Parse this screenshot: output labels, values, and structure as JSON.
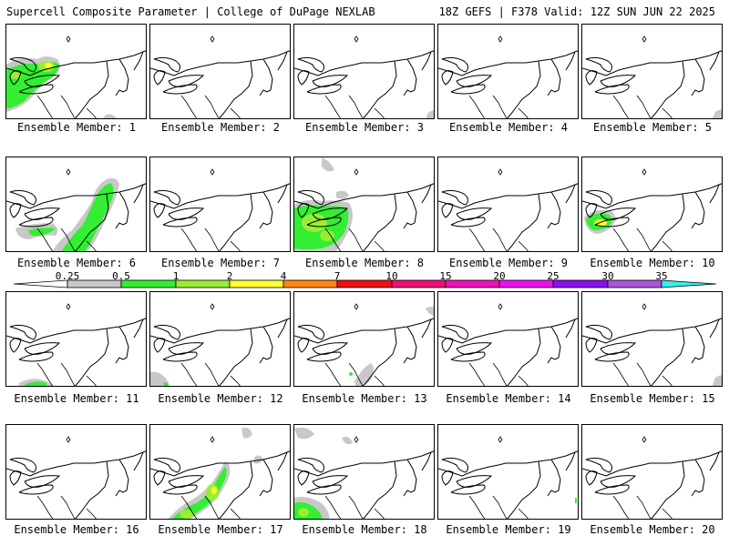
{
  "header": {
    "title_left": "Supercell Composite Parameter | College of DuPage NEXLAB",
    "title_right": "18Z GEFS | F378 Valid: 12Z SUN JUN 22 2025"
  },
  "colorbar": {
    "tick_labels": [
      "0.25",
      "0.5",
      "1",
      "2",
      "4",
      "7",
      "10",
      "15",
      "20",
      "25",
      "30",
      "35"
    ],
    "colors": [
      "#c8c8c8",
      "#33ee33",
      "#99ee33",
      "#ffff33",
      "#ff8811",
      "#ee1111",
      "#ee1177",
      "#ee11bb",
      "#ee11ee",
      "#8811ee",
      "#aa55dd",
      "#33eeee"
    ]
  },
  "members": [
    {
      "label": "Ensemble Member: 1",
      "coverage": "high"
    },
    {
      "label": "Ensemble Member: 2",
      "coverage": "none"
    },
    {
      "label": "Ensemble Member: 3",
      "coverage": "trace"
    },
    {
      "label": "Ensemble Member: 4",
      "coverage": "none"
    },
    {
      "label": "Ensemble Member: 5",
      "coverage": "trace"
    },
    {
      "label": "Ensemble Member: 6",
      "coverage": "high"
    },
    {
      "label": "Ensemble Member: 7",
      "coverage": "none"
    },
    {
      "label": "Ensemble Member: 8",
      "coverage": "high"
    },
    {
      "label": "Ensemble Member: 9",
      "coverage": "none"
    },
    {
      "label": "Ensemble Member: 10",
      "coverage": "moderate"
    },
    {
      "label": "Ensemble Member: 11",
      "coverage": "low"
    },
    {
      "label": "Ensemble Member: 12",
      "coverage": "low"
    },
    {
      "label": "Ensemble Member: 13",
      "coverage": "low"
    },
    {
      "label": "Ensemble Member: 14",
      "coverage": "none"
    },
    {
      "label": "Ensemble Member: 15",
      "coverage": "trace"
    },
    {
      "label": "Ensemble Member: 16",
      "coverage": "none"
    },
    {
      "label": "Ensemble Member: 17",
      "coverage": "high"
    },
    {
      "label": "Ensemble Member: 18",
      "coverage": "moderate"
    },
    {
      "label": "Ensemble Member: 19",
      "coverage": "trace"
    },
    {
      "label": "Ensemble Member: 20",
      "coverage": "none"
    }
  ]
}
